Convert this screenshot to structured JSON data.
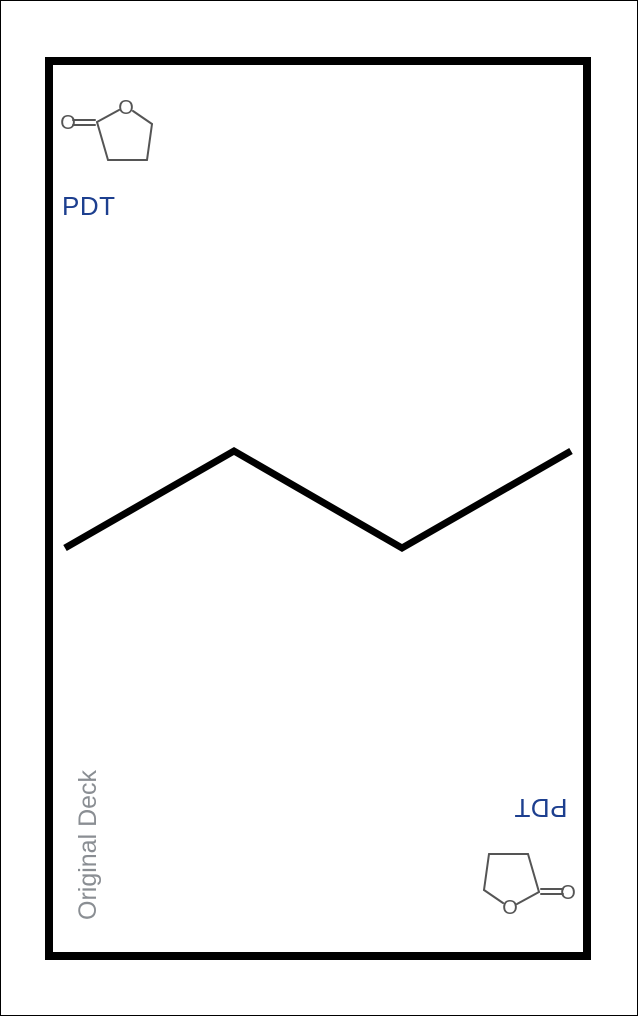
{
  "card": {
    "label": "PDT",
    "deck": "Original Deck",
    "icon": "gamma-butyrolactone-structure-icon",
    "atom_label": "O"
  },
  "colors": {
    "label": "#1d3f8f",
    "deck": "#8a8e93",
    "border": "#000000",
    "structure": "#555555"
  }
}
